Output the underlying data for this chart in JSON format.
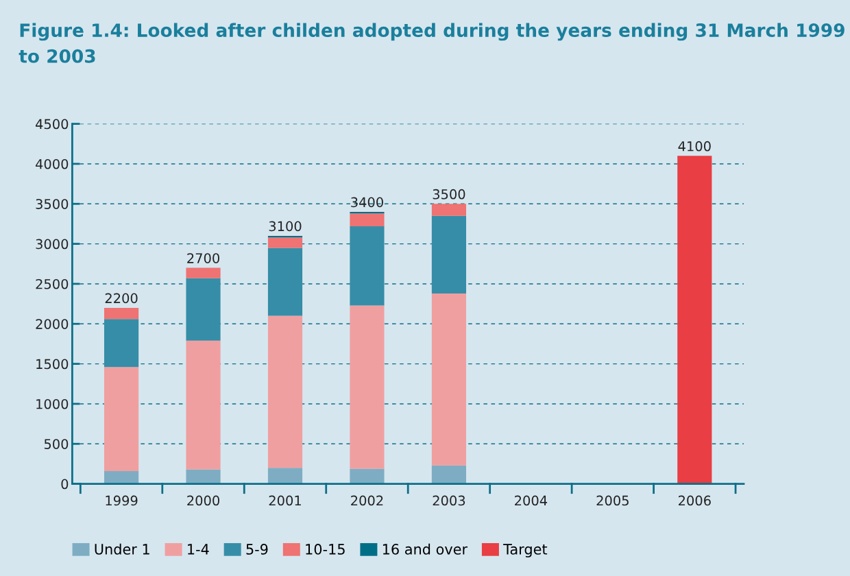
{
  "chart_data": {
    "type": "bar",
    "stacked": true,
    "title": "Figure 1.4: Looked after childen adopted during the years ending 31 March 1999 to 2003",
    "categories": [
      "1999",
      "2000",
      "2001",
      "2002",
      "2003",
      "2004",
      "2005",
      "2006"
    ],
    "series": [
      {
        "name": "Under 1",
        "color": "#7eadc3",
        "values": [
          160,
          180,
          200,
          190,
          230,
          null,
          null,
          null
        ]
      },
      {
        "name": "1-4",
        "color": "#f09fa0",
        "values": [
          1300,
          1610,
          1900,
          2040,
          2150,
          null,
          null,
          null
        ]
      },
      {
        "name": "5-9",
        "color": "#368da7",
        "values": [
          600,
          780,
          850,
          990,
          970,
          null,
          null,
          null
        ]
      },
      {
        "name": "10-15",
        "color": "#ee7372",
        "values": [
          140,
          130,
          130,
          160,
          150,
          null,
          null,
          null
        ]
      },
      {
        "name": "16 and over",
        "color": "#006e87",
        "values": [
          null,
          null,
          20,
          20,
          null,
          null,
          null,
          null
        ]
      },
      {
        "name": "Target",
        "color": "#e83e44",
        "values": [
          null,
          null,
          null,
          null,
          null,
          null,
          null,
          4100
        ]
      }
    ],
    "totals": [
      "2200",
      "2700",
      "3100",
      "3400",
      "3500",
      null,
      null,
      "4100"
    ],
    "ylim": [
      0,
      4500
    ],
    "yticks": [
      0,
      500,
      1000,
      1500,
      2000,
      2500,
      3000,
      3500,
      4000,
      4500
    ],
    "grid": "y",
    "legend": "bottom"
  }
}
